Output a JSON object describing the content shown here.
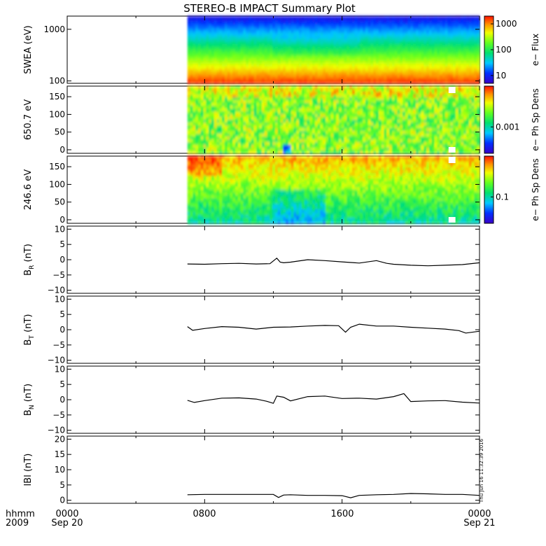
{
  "title": "STEREO-B IMPACT Summary Plot",
  "time_labels": {
    "row1": "hhmm",
    "row2": "2009",
    "ticks": [
      {
        "hhmm": "0000",
        "date": "Sep 20"
      },
      {
        "hhmm": "0800",
        "date": ""
      },
      {
        "hhmm": "1600",
        "date": ""
      },
      {
        "hhmm": "0000",
        "date": "Sep 21"
      }
    ]
  },
  "side_stamp": "Thu Jun 16 11:32:39 2016",
  "colors": {
    "line": "#000000",
    "frame": "#000000"
  },
  "chart_data": [
    {
      "type": "heatmap",
      "id": "swea",
      "ylabel": "SWEA (eV)",
      "yscale": "log",
      "ylim": [
        90,
        1800
      ],
      "yticks": [
        {
          "v": 100,
          "label": "100"
        },
        {
          "v": 1000,
          "label": "1000"
        }
      ],
      "data_start_hours": 7.0,
      "colorbar": {
        "label": "e− Flux",
        "scale": "log",
        "range": [
          5,
          2000
        ],
        "ticks": [
          {
            "v": 10,
            "label": "10"
          },
          {
            "v": 100,
            "label": "100"
          },
          {
            "v": 1000,
            "label": "1000"
          }
        ]
      }
    },
    {
      "type": "heatmap",
      "id": "pad650",
      "ylabel": "650.7 eV",
      "yscale": "linear",
      "ylim": [
        -10,
        180
      ],
      "yticks": [
        {
          "v": 0,
          "label": "0"
        },
        {
          "v": 50,
          "label": "50"
        },
        {
          "v": 100,
          "label": "100"
        },
        {
          "v": 150,
          "label": "150"
        }
      ],
      "data_start_hours": 7.0,
      "data_gap_hours": [
        22.2,
        22.6
      ],
      "colorbar": {
        "label": "e− Ph Sp Dens",
        "scale": "log",
        "ticks": [
          {
            "v": 0.001,
            "label": "0.001"
          }
        ]
      }
    },
    {
      "type": "heatmap",
      "id": "pad246",
      "ylabel": "246.6 eV",
      "yscale": "linear",
      "ylim": [
        -10,
        180
      ],
      "yticks": [
        {
          "v": 0,
          "label": "0"
        },
        {
          "v": 50,
          "label": "50"
        },
        {
          "v": 100,
          "label": "100"
        },
        {
          "v": 150,
          "label": "150"
        }
      ],
      "data_start_hours": 7.0,
      "data_gap_hours": [
        22.2,
        22.6
      ],
      "colorbar": {
        "label": "e− Ph Sp Dens",
        "scale": "log",
        "ticks": [
          {
            "v": 0.1,
            "label": "0.1"
          }
        ]
      }
    },
    {
      "type": "line",
      "id": "br",
      "ylabel": "B",
      "ysub": "R",
      "yunit": "(nT)",
      "ylim": [
        -11,
        11
      ],
      "yticks": [
        {
          "v": -10,
          "label": "−10"
        },
        {
          "v": -5,
          "label": "−5"
        },
        {
          "v": 0,
          "label": "0"
        },
        {
          "v": 5,
          "label": "5"
        },
        {
          "v": 10,
          "label": "10"
        }
      ],
      "x": [
        7.0,
        8.0,
        9.0,
        10.0,
        11.0,
        11.8,
        12.2,
        12.4,
        12.6,
        13.0,
        14.0,
        15.0,
        16.0,
        17.0,
        18.0,
        18.6,
        19.0,
        20.0,
        21.0,
        22.0,
        23.0,
        24.0
      ],
      "values": [
        -1.4,
        -1.5,
        -1.3,
        -1.2,
        -1.4,
        -1.3,
        0.5,
        -0.8,
        -1.0,
        -0.8,
        0.0,
        -0.3,
        -0.7,
        -1.1,
        -0.3,
        -1.2,
        -1.5,
        -1.8,
        -2.0,
        -1.8,
        -1.6,
        -1.0
      ]
    },
    {
      "type": "line",
      "id": "bt",
      "ylabel": "B",
      "ysub": "T",
      "yunit": "(nT)",
      "ylim": [
        -11,
        11
      ],
      "yticks": [
        {
          "v": -10,
          "label": "−10"
        },
        {
          "v": -5,
          "label": "−5"
        },
        {
          "v": 0,
          "label": "0"
        },
        {
          "v": 5,
          "label": "5"
        },
        {
          "v": 10,
          "label": "10"
        }
      ],
      "x": [
        7.0,
        7.3,
        8.0,
        9.0,
        10.0,
        11.0,
        12.0,
        13.0,
        14.0,
        15.0,
        15.8,
        16.2,
        16.5,
        17.0,
        18.0,
        19.0,
        20.0,
        21.0,
        22.0,
        22.8,
        23.2,
        24.0
      ],
      "values": [
        1.0,
        -0.2,
        0.4,
        1.0,
        0.8,
        0.2,
        0.8,
        0.9,
        1.2,
        1.4,
        1.3,
        -0.8,
        0.8,
        1.8,
        1.2,
        1.2,
        0.8,
        0.5,
        0.2,
        -0.3,
        -1.1,
        -0.5
      ]
    },
    {
      "type": "line",
      "id": "bn",
      "ylabel": "B",
      "ysub": "N",
      "yunit": "(nT)",
      "ylim": [
        -11,
        11
      ],
      "yticks": [
        {
          "v": -10,
          "label": "−10"
        },
        {
          "v": -5,
          "label": "−5"
        },
        {
          "v": 0,
          "label": "0"
        },
        {
          "v": 5,
          "label": "5"
        },
        {
          "v": 10,
          "label": "10"
        }
      ],
      "x": [
        7.0,
        7.4,
        8.0,
        9.0,
        10.0,
        11.0,
        11.6,
        12.0,
        12.2,
        12.6,
        13.0,
        14.0,
        15.0,
        16.0,
        17.0,
        18.0,
        19.0,
        19.6,
        20.0,
        21.0,
        22.0,
        23.0,
        24.0
      ],
      "values": [
        -0.2,
        -0.9,
        -0.3,
        0.5,
        0.6,
        0.2,
        -0.5,
        -1.2,
        1.2,
        0.8,
        -0.4,
        1.0,
        1.2,
        0.4,
        0.5,
        0.2,
        1.0,
        2.0,
        -0.6,
        -0.4,
        -0.3,
        -0.8,
        -1.1
      ]
    },
    {
      "type": "line",
      "id": "bmag",
      "ylabel": "lBl",
      "yunit": "(nT)",
      "ylim": [
        -1,
        21
      ],
      "yticks": [
        {
          "v": 0,
          "label": "0"
        },
        {
          "v": 5,
          "label": "5"
        },
        {
          "v": 10,
          "label": "10"
        },
        {
          "v": 15,
          "label": "15"
        },
        {
          "v": 20,
          "label": "20"
        }
      ],
      "x": [
        7.0,
        8.0,
        9.0,
        10.0,
        11.0,
        12.0,
        12.3,
        12.6,
        13.0,
        14.0,
        15.0,
        16.0,
        16.5,
        17.0,
        18.0,
        19.0,
        20.0,
        21.0,
        22.0,
        23.0,
        24.0
      ],
      "values": [
        1.8,
        1.9,
        1.9,
        1.9,
        1.9,
        1.9,
        0.9,
        1.7,
        1.8,
        1.6,
        1.6,
        1.5,
        0.8,
        1.6,
        1.8,
        1.9,
        2.2,
        2.1,
        1.9,
        1.9,
        1.6
      ]
    }
  ]
}
